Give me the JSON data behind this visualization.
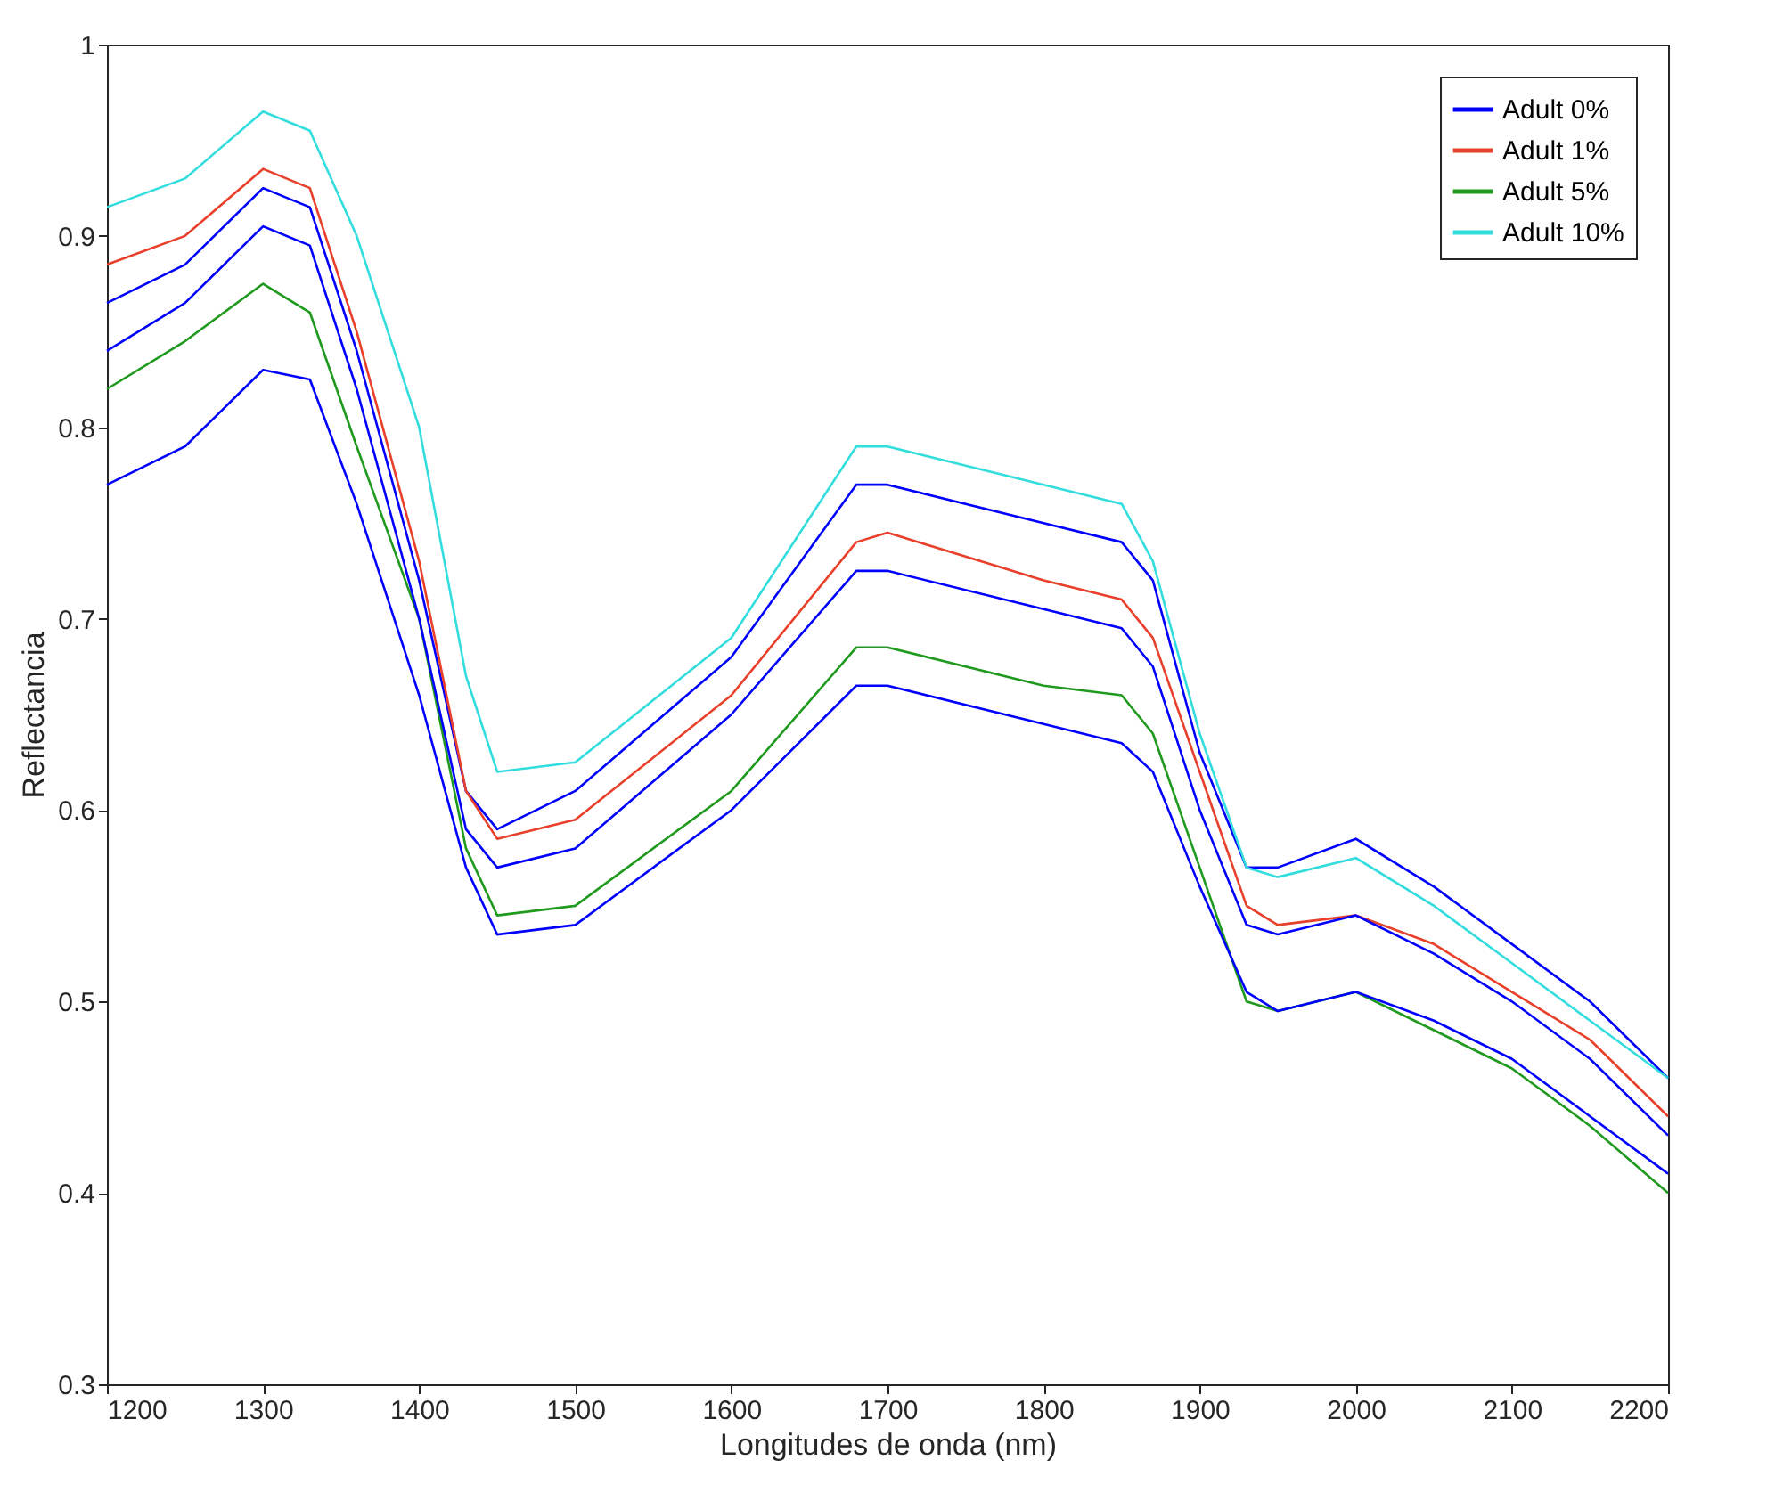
{
  "chart_data": {
    "type": "line",
    "xlabel": "Longitudes de onda (nm)",
    "ylabel": "Reflectancia",
    "xlim": [
      1200,
      2200
    ],
    "xticks": [
      1200,
      1300,
      1400,
      1500,
      1600,
      1700,
      1800,
      1900,
      2000,
      2100,
      2200
    ],
    "ylim": [
      0.3,
      1
    ],
    "yticks": [
      0.3,
      0.4,
      0.5,
      0.6,
      0.7,
      0.8,
      0.9,
      1
    ],
    "grid": false,
    "legend": "top right",
    "marker": "none",
    "line_style": "solid",
    "x": [
      1200,
      1250,
      1300,
      1330,
      1360,
      1400,
      1430,
      1450,
      1500,
      1600,
      1680,
      1700,
      1800,
      1850,
      1870,
      1900,
      1930,
      1950,
      2000,
      2050,
      2100,
      2150,
      2200
    ],
    "series": [
      {
        "name": "Adult 0%",
        "color": "#0000ff",
        "values": [
          0.865,
          0.885,
          0.925,
          0.915,
          0.84,
          0.72,
          0.61,
          0.59,
          0.61,
          0.68,
          0.77,
          0.77,
          0.75,
          0.74,
          0.72,
          0.63,
          0.57,
          0.57,
          0.585,
          0.56,
          0.53,
          0.5,
          0.46
        ]
      },
      {
        "name": "Adult 1%",
        "color": "#e8402a",
        "values": [
          0.885,
          0.9,
          0.935,
          0.925,
          0.85,
          0.73,
          0.61,
          0.585,
          0.595,
          0.66,
          0.74,
          0.745,
          0.72,
          0.71,
          0.69,
          0.62,
          0.55,
          0.54,
          0.545,
          0.53,
          0.505,
          0.48,
          0.44
        ]
      },
      {
        "name": "Adult 5%",
        "color": "#1f9a1f",
        "values": [
          0.82,
          0.845,
          0.875,
          0.86,
          0.79,
          0.7,
          0.58,
          0.545,
          0.55,
          0.61,
          0.685,
          0.685,
          0.665,
          0.66,
          0.64,
          0.57,
          0.5,
          0.495,
          0.505,
          0.485,
          0.465,
          0.435,
          0.4
        ]
      },
      {
        "name": "Adult 10%",
        "color": "#33dddd",
        "values": [
          0.915,
          0.93,
          0.965,
          0.955,
          0.9,
          0.8,
          0.67,
          0.62,
          0.625,
          0.69,
          0.79,
          0.79,
          0.77,
          0.76,
          0.73,
          0.64,
          0.57,
          0.565,
          0.575,
          0.55,
          0.52,
          0.49,
          0.46
        ]
      },
      {
        "color": "#0000ff",
        "values": [
          0.84,
          0.865,
          0.905,
          0.895,
          0.82,
          0.7,
          0.59,
          0.57,
          0.58,
          0.65,
          0.725,
          0.725,
          0.705,
          0.695,
          0.675,
          0.6,
          0.54,
          0.535,
          0.545,
          0.525,
          0.5,
          0.47,
          0.43
        ]
      },
      {
        "color": "#0000ff",
        "values": [
          0.77,
          0.79,
          0.83,
          0.825,
          0.76,
          0.66,
          0.57,
          0.535,
          0.54,
          0.6,
          0.665,
          0.665,
          0.645,
          0.635,
          0.62,
          0.56,
          0.505,
          0.495,
          0.505,
          0.49,
          0.47,
          0.44,
          0.41
        ]
      }
    ]
  }
}
